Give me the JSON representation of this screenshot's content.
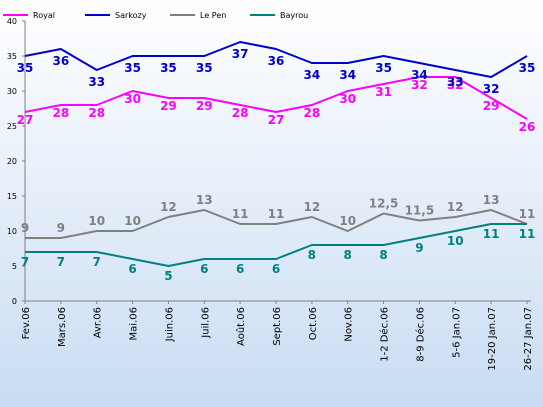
{
  "chart_data": {
    "type": "line",
    "categories": [
      "Fev.06",
      "Mars.06",
      "Avr.06",
      "Mai.06",
      "Juin.06",
      "Juil.06",
      "Août.06",
      "Sept.06",
      "Oct.06",
      "Nov.06",
      "1-2 Déc.06",
      "8-9 Déc.06",
      "5-6 Jan.07",
      "19-20 Jan.07",
      "26-27 Jan.07"
    ],
    "ylim": [
      0,
      40
    ],
    "yticks": [
      0,
      5,
      10,
      15,
      20,
      25,
      30,
      35,
      40
    ],
    "grid": false,
    "legend_position": "top",
    "series": [
      {
        "name": "Royal",
        "color": "#ff00ff",
        "values": [
          27,
          28,
          28,
          30,
          29,
          29,
          28,
          27,
          28,
          30,
          31,
          32,
          32,
          29,
          26
        ],
        "labels": [
          "27",
          "28",
          "28",
          "30",
          "29",
          "29",
          "28",
          "27",
          "28",
          "30",
          "31",
          "32",
          "32",
          "29",
          "26"
        ]
      },
      {
        "name": "Sarkozy",
        "color": "#0000cc",
        "values": [
          35,
          36,
          33,
          35,
          35,
          35,
          37,
          36,
          34,
          34,
          35,
          34,
          33,
          32,
          35
        ],
        "labels": [
          "35",
          "36",
          "33",
          "35",
          "35",
          "35",
          "37",
          "36",
          "34",
          "34",
          "35",
          "34",
          "33",
          "32",
          "35"
        ]
      },
      {
        "name": "Le Pen",
        "color": "#808080",
        "values": [
          9,
          9,
          10,
          10,
          12,
          13,
          11,
          11,
          12,
          10,
          12.5,
          11.5,
          12,
          13,
          11
        ],
        "labels": [
          "9",
          "9",
          "10",
          "10",
          "12",
          "13",
          "11",
          "11",
          "12",
          "10",
          "12,5",
          "11,5",
          "12",
          "13",
          "11"
        ]
      },
      {
        "name": "Bayrou",
        "color": "#008080",
        "values": [
          7,
          7,
          7,
          6,
          5,
          6,
          6,
          6,
          8,
          8,
          8,
          9,
          10,
          11,
          11
        ],
        "labels": [
          "7",
          "7",
          "7",
          "6",
          "5",
          "6",
          "6",
          "6",
          "8",
          "8",
          "8",
          "9",
          "10",
          "11",
          "11"
        ]
      }
    ]
  }
}
